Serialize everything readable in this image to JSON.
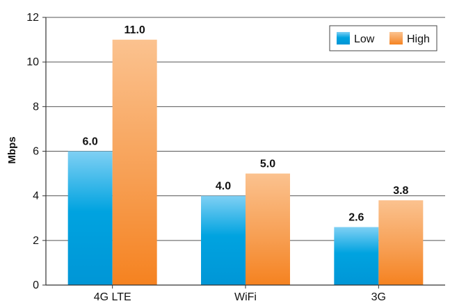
{
  "chart_data": {
    "type": "bar",
    "title": "",
    "xlabel": "",
    "ylabel": "Mbps",
    "categories": [
      "4G LTE",
      "WiFi",
      "3G"
    ],
    "series": [
      {
        "name": "Low",
        "values": [
          6.0,
          4.0,
          2.6
        ],
        "color_top": "#7fd0f4",
        "color_bottom": "#00a3e0"
      },
      {
        "name": "High",
        "values": [
          11.0,
          5.0,
          3.8
        ],
        "color_top": "#fbc28f",
        "color_bottom": "#f58220"
      }
    ],
    "value_labels": [
      [
        "6.0",
        "4.0",
        "2.6"
      ],
      [
        "11.0",
        "5.0",
        "3.8"
      ]
    ],
    "ylim": [
      0,
      12
    ],
    "yticks": [
      0,
      2,
      4,
      6,
      8,
      10,
      12
    ],
    "grid": true,
    "legend_position": "top-right"
  }
}
